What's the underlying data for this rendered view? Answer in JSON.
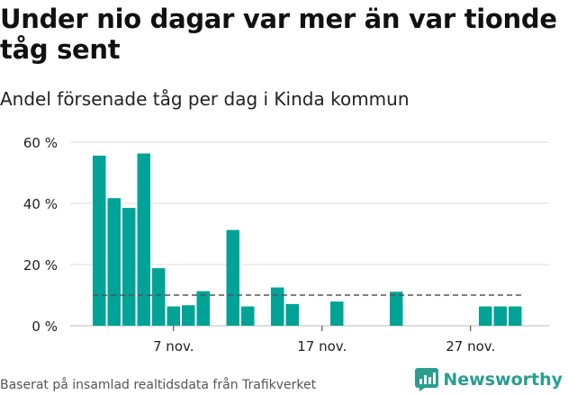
{
  "title": "Under nio dagar var mer än var tionde tåg sent",
  "subtitle": "Andel försenade tåg per dag i Kinda kommun",
  "source": "Baserat på insamlad realtidsdata från Trafikverket",
  "brand": "Newsworthy",
  "colors": {
    "bar": "#00a396",
    "reference_line": "#555555",
    "grid": "#dddddd",
    "brand": "#2a9d8f"
  },
  "icons": {
    "logo": "newsworthy-logo-icon"
  },
  "chart_data": {
    "type": "bar",
    "x_start": "2 nov.",
    "x": [
      1,
      2,
      3,
      4,
      5,
      6,
      7,
      8,
      9,
      10,
      11,
      12,
      13,
      14,
      15,
      16,
      17,
      18,
      19,
      20,
      21,
      22,
      23,
      24,
      25,
      26,
      27,
      28,
      29
    ],
    "values": [
      55.6,
      41.7,
      38.5,
      56.3,
      18.8,
      6.3,
      6.7,
      11.3,
      0,
      31.3,
      6.3,
      0,
      12.5,
      7.1,
      0,
      0,
      7.9,
      0,
      0,
      0,
      11.1,
      0,
      0,
      0,
      0,
      0,
      6.3,
      6.3,
      6.3
    ],
    "reference_line": 10,
    "ylim": [
      0,
      60
    ],
    "yticks": [
      0,
      20,
      40,
      60
    ],
    "ytick_labels": [
      "0 %",
      "20 %",
      "40 %",
      "60 %"
    ],
    "xticks": [
      6,
      16,
      26
    ],
    "xtick_labels": [
      "7 nov.",
      "17 nov.",
      "27 nov."
    ],
    "grid": true
  }
}
